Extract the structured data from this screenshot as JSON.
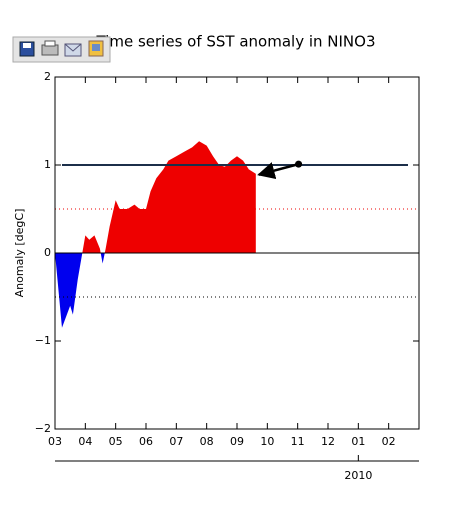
{
  "chart_data": {
    "type": "area",
    "title": "Time series of SST anomaly in NINO3",
    "y_label": "Anomaly [degC]",
    "x": [
      0,
      0.23,
      0.5,
      0.59,
      0.75,
      0.9,
      1.0,
      1.13,
      1.3,
      1.48,
      1.57,
      1.67,
      1.8,
      2.0,
      2.13,
      2.39,
      2.62,
      2.79,
      3.0,
      3.15,
      3.34,
      3.57,
      3.74,
      4.0,
      4.26,
      4.52,
      4.75,
      5.0,
      5.21,
      5.41,
      5.6,
      5.8,
      6.0,
      6.2,
      6.39,
      6.62
    ],
    "values": [
      0,
      -0.85,
      -0.6,
      -0.7,
      -0.3,
      0,
      0.2,
      0.15,
      0.2,
      0.05,
      -0.12,
      0.05,
      0.3,
      0.6,
      0.5,
      0.5,
      0.55,
      0.5,
      0.5,
      0.7,
      0.85,
      0.95,
      1.05,
      1.1,
      1.15,
      1.2,
      1.27,
      1.22,
      1.1,
      1.0,
      0.98,
      1.05,
      1.1,
      1.05,
      0.95,
      0.9
    ],
    "positive_color": "#ee0000",
    "negative_color": "#0000ee",
    "xlim": [
      0,
      12
    ],
    "xticks": [
      {
        "value": 0,
        "label": "03"
      },
      {
        "value": 1,
        "label": "04"
      },
      {
        "value": 2,
        "label": "05"
      },
      {
        "value": 3,
        "label": "06"
      },
      {
        "value": 4,
        "label": "07"
      },
      {
        "value": 5,
        "label": "08"
      },
      {
        "value": 6,
        "label": "09"
      },
      {
        "value": 7,
        "label": "10"
      },
      {
        "value": 8,
        "label": "11"
      },
      {
        "value": 9,
        "label": "12"
      },
      {
        "value": 10,
        "label": "01"
      },
      {
        "value": 11,
        "label": "02"
      }
    ],
    "year_ticks": [
      {
        "value": 10,
        "label": "2010"
      }
    ],
    "ylim": [
      -2,
      2
    ],
    "yticks": [
      {
        "value": -2,
        "label": "−2"
      },
      {
        "value": -1,
        "label": "−1"
      },
      0,
      1,
      2
    ],
    "reference_lines": [
      {
        "value": 1,
        "color": "#1c2f4a",
        "style": "solid"
      },
      {
        "value": 0.5,
        "color": "#ee0000",
        "style": "dotted"
      },
      {
        "value": 0,
        "color": "#000000",
        "style": "solid"
      },
      {
        "value": -0.5,
        "color": "#000000",
        "style": "dotted"
      }
    ],
    "arrow": {
      "from": [
        8.03,
        1.01
      ],
      "to": [
        6.72,
        0.89
      ]
    }
  }
}
